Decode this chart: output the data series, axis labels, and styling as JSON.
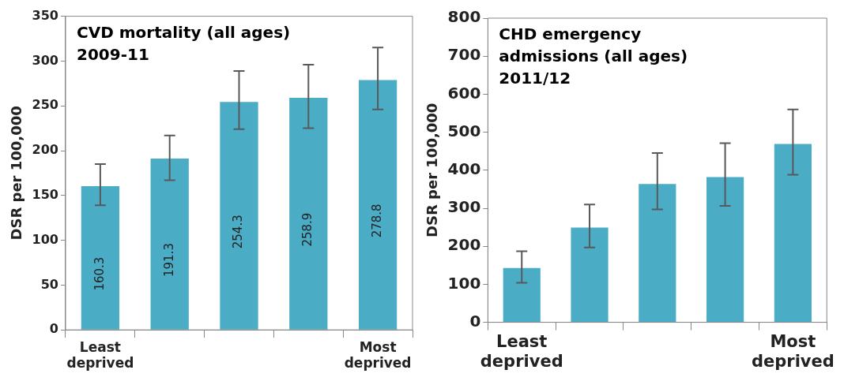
{
  "chart_data": [
    {
      "type": "bar",
      "title": "CVD mortality (all ages) 2009-11",
      "ylabel": "DSR per 100,000",
      "categories": [
        "Least deprived",
        null,
        null,
        null,
        "Most deprived"
      ],
      "values": [
        160.3,
        191.3,
        254.3,
        258.9,
        278.8
      ],
      "color": "#4bacc6",
      "errors": [
        [
          139,
          185
        ],
        [
          167,
          217
        ],
        [
          224,
          289
        ],
        [
          225,
          296
        ],
        [
          246,
          315
        ]
      ],
      "ylim": [
        0,
        350
      ],
      "yticks": [
        0,
        50,
        100,
        150,
        200,
        250,
        300,
        350
      ],
      "grid": false,
      "legend": false,
      "data_labels": true
    },
    {
      "type": "bar",
      "title": "CHD emergency admissions (all ages) 2011/12",
      "ylabel": "DSR per 100,000",
      "categories": [
        "Least deprived",
        null,
        null,
        null,
        "Most deprived"
      ],
      "values": [
        143,
        249,
        364,
        382,
        469
      ],
      "color": "#4bacc6",
      "errors": [
        [
          104,
          187
        ],
        [
          197,
          310
        ],
        [
          297,
          445
        ],
        [
          306,
          471
        ],
        [
          388,
          560
        ]
      ],
      "ylim": [
        0,
        800
      ],
      "yticks": [
        0,
        100,
        200,
        300,
        400,
        500,
        600,
        700,
        800
      ],
      "grid": false,
      "legend": false
    }
  ]
}
